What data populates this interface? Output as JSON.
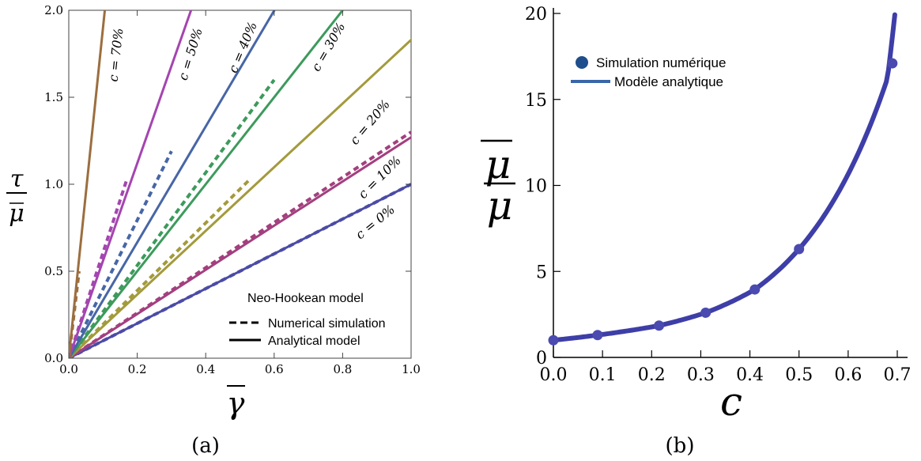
{
  "chart_data": [
    {
      "type": "line",
      "panel_label": "(a)",
      "xlabel": "γ",
      "ylabel_num": "τ",
      "ylabel_den": "μ",
      "xlim": [
        0,
        1
      ],
      "ylim": [
        0,
        2
      ],
      "xticks": [
        "0.0",
        "0.2",
        "0.4",
        "0.6",
        "0.8",
        "1.0"
      ],
      "yticks": [
        "0.0",
        "0.5",
        "1.0",
        "1.5",
        "2.0"
      ],
      "legend": {
        "title": "Neo-Hookean model",
        "dashed": "Numerical simulation",
        "solid": "Analytical model",
        "placement": "bottom-right"
      },
      "series": [
        {
          "label": "c = 0%",
          "color": "#4b4ba6",
          "analytical_slope": 1.0,
          "numerical": {
            "x": [
              0,
              1.0
            ],
            "y": [
              0,
              1.0
            ]
          }
        },
        {
          "label": "c = 10%",
          "color": "#a33f7f",
          "analytical_slope": 1.27,
          "numerical": {
            "x": [
              0,
              1.0
            ],
            "y": [
              0,
              1.3
            ]
          }
        },
        {
          "label": "c = 20%",
          "color": "#a39a3c",
          "analytical_slope": 1.83,
          "numerical": {
            "x": [
              0,
              0.53
            ],
            "y": [
              0,
              1.03
            ]
          }
        },
        {
          "label": "c = 30%",
          "color": "#3d9a5c",
          "analytical_slope": 2.5,
          "numerical": {
            "x": [
              0,
              0.6
            ],
            "y": [
              0,
              1.6
            ]
          }
        },
        {
          "label": "c = 40%",
          "color": "#4766a6",
          "analytical_slope": 3.33,
          "numerical": {
            "x": [
              0,
              0.3
            ],
            "y": [
              0,
              1.19
            ]
          }
        },
        {
          "label": "c = 50%",
          "color": "#a445b0",
          "analytical_slope": 5.6,
          "numerical": {
            "x": [
              0,
              0.17
            ],
            "y": [
              0,
              1.03
            ]
          }
        },
        {
          "label": "c = 70%",
          "color": "#9c6e3f",
          "analytical_slope": 19.0,
          "numerical": {
            "x": [
              0,
              0.03
            ],
            "y": [
              0,
              0.5
            ]
          }
        }
      ]
    },
    {
      "type": "scatter",
      "panel_label": "(b)",
      "xlabel": "c",
      "ylabel_num": "μ",
      "ylabel_den": "μ",
      "xlim": [
        0,
        0.7
      ],
      "ylim": [
        0,
        20
      ],
      "xticks": [
        "0.0",
        "0.1",
        "0.2",
        "0.3",
        "0.4",
        "0.5",
        "0.6",
        "0.7"
      ],
      "yticks": [
        "0",
        "5",
        "10",
        "15",
        "20"
      ],
      "legend": {
        "points": "Simulation numérique",
        "line": "Modèle analytique",
        "placement": "top-left"
      },
      "points": {
        "x": [
          0.0,
          0.09,
          0.215,
          0.31,
          0.41,
          0.5,
          0.69
        ],
        "y": [
          1.0,
          1.3,
          1.85,
          2.6,
          3.95,
          6.3,
          17.1
        ]
      },
      "colors": {
        "points": "#4a4ab0",
        "line": "#3e3ea8",
        "legend_marker": "#1f4e8c",
        "legend_line": "#3a66a8"
      }
    }
  ]
}
